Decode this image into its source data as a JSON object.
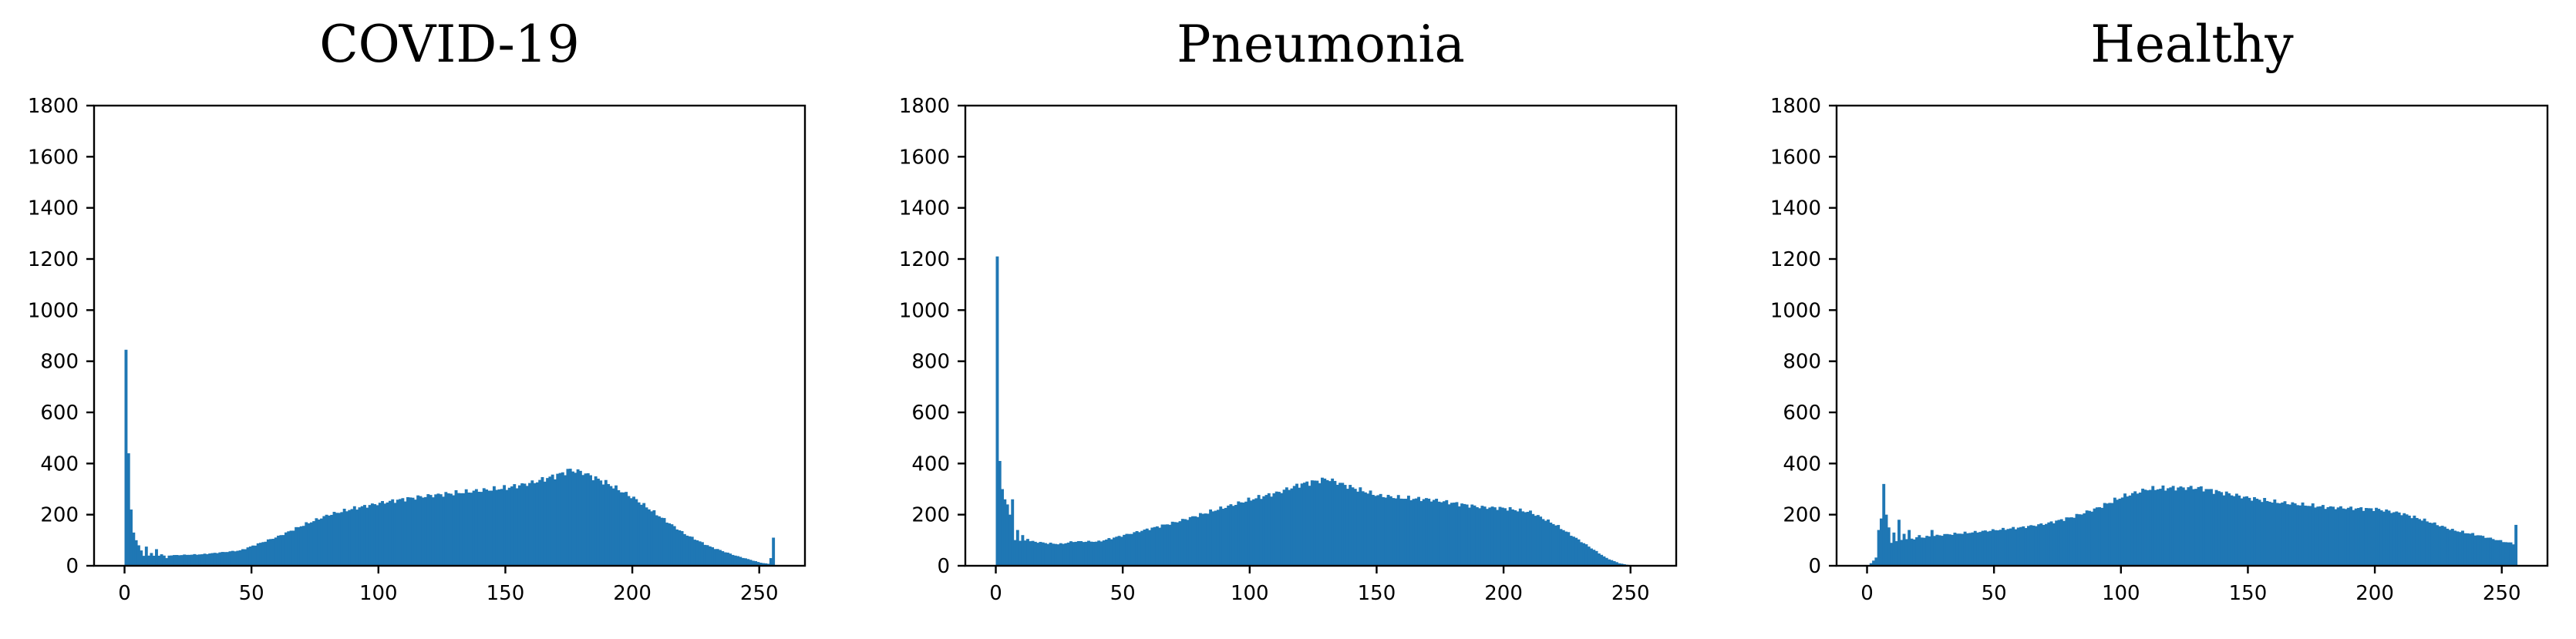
{
  "chart_data": [
    {
      "type": "histogram",
      "title": "COVID-19",
      "xlim": [
        -12,
        268
      ],
      "ylim": [
        0,
        1800
      ],
      "xticks": [
        0,
        50,
        100,
        150,
        200,
        250
      ],
      "yticks": [
        0,
        200,
        400,
        600,
        800,
        1000,
        1200,
        1400,
        1600,
        1800
      ],
      "bar_color": "#1f77b4",
      "grid": false,
      "envelope": [
        [
          0,
          40
        ],
        [
          15,
          40
        ],
        [
          30,
          45
        ],
        [
          45,
          60
        ],
        [
          60,
          115
        ],
        [
          70,
          160
        ],
        [
          80,
          200
        ],
        [
          90,
          225
        ],
        [
          100,
          245
        ],
        [
          110,
          262
        ],
        [
          120,
          275
        ],
        [
          130,
          285
        ],
        [
          140,
          295
        ],
        [
          150,
          305
        ],
        [
          160,
          325
        ],
        [
          170,
          355
        ],
        [
          175,
          375
        ],
        [
          180,
          365
        ],
        [
          190,
          320
        ],
        [
          200,
          265
        ],
        [
          210,
          195
        ],
        [
          220,
          125
        ],
        [
          230,
          75
        ],
        [
          240,
          40
        ],
        [
          250,
          12
        ],
        [
          255,
          5
        ]
      ],
      "spikes": [
        [
          0,
          845
        ],
        [
          1,
          440
        ],
        [
          2,
          220
        ],
        [
          3,
          130
        ],
        [
          4,
          100
        ],
        [
          5,
          80
        ],
        [
          6,
          60
        ],
        [
          8,
          75
        ],
        [
          10,
          50
        ],
        [
          12,
          65
        ],
        [
          14,
          45
        ],
        [
          16,
          30
        ],
        [
          254,
          30
        ],
        [
          255,
          110
        ]
      ]
    },
    {
      "type": "histogram",
      "title": "Pneumonia",
      "xlim": [
        -12,
        268
      ],
      "ylim": [
        0,
        1800
      ],
      "xticks": [
        0,
        50,
        100,
        150,
        200,
        250
      ],
      "yticks": [
        0,
        200,
        400,
        600,
        800,
        1000,
        1200,
        1400,
        1600,
        1800
      ],
      "bar_color": "#1f77b4",
      "grid": false,
      "envelope": [
        [
          0,
          100
        ],
        [
          10,
          100
        ],
        [
          20,
          88
        ],
        [
          25,
          85
        ],
        [
          30,
          95
        ],
        [
          40,
          95
        ],
        [
          50,
          120
        ],
        [
          60,
          145
        ],
        [
          70,
          170
        ],
        [
          80,
          200
        ],
        [
          90,
          230
        ],
        [
          100,
          260
        ],
        [
          110,
          285
        ],
        [
          120,
          320
        ],
        [
          130,
          340
        ],
        [
          140,
          305
        ],
        [
          150,
          275
        ],
        [
          160,
          265
        ],
        [
          170,
          260
        ],
        [
          180,
          245
        ],
        [
          190,
          230
        ],
        [
          200,
          225
        ],
        [
          210,
          210
        ],
        [
          220,
          160
        ],
        [
          230,
          95
        ],
        [
          240,
          30
        ],
        [
          245,
          10
        ],
        [
          250,
          0
        ]
      ],
      "spikes": [
        [
          0,
          1210
        ],
        [
          1,
          410
        ],
        [
          2,
          300
        ],
        [
          3,
          260
        ],
        [
          4,
          240
        ],
        [
          5,
          200
        ],
        [
          6,
          260
        ],
        [
          8,
          140
        ],
        [
          10,
          120
        ],
        [
          12,
          105
        ]
      ]
    },
    {
      "type": "histogram",
      "title": "Healthy",
      "xlim": [
        -12,
        268
      ],
      "ylim": [
        0,
        1800
      ],
      "xticks": [
        0,
        50,
        100,
        150,
        200,
        250
      ],
      "yticks": [
        0,
        200,
        400,
        600,
        800,
        1000,
        1200,
        1400,
        1600,
        1800
      ],
      "bar_color": "#1f77b4",
      "grid": false,
      "envelope": [
        [
          0,
          0
        ],
        [
          2,
          20
        ],
        [
          5,
          60
        ],
        [
          10,
          95
        ],
        [
          20,
          110
        ],
        [
          30,
          122
        ],
        [
          40,
          130
        ],
        [
          50,
          140
        ],
        [
          60,
          150
        ],
        [
          70,
          165
        ],
        [
          80,
          190
        ],
        [
          90,
          225
        ],
        [
          100,
          270
        ],
        [
          110,
          300
        ],
        [
          120,
          305
        ],
        [
          130,
          305
        ],
        [
          140,
          285
        ],
        [
          150,
          265
        ],
        [
          160,
          250
        ],
        [
          170,
          240
        ],
        [
          180,
          230
        ],
        [
          190,
          225
        ],
        [
          200,
          222
        ],
        [
          210,
          205
        ],
        [
          220,
          175
        ],
        [
          230,
          140
        ],
        [
          240,
          120
        ],
        [
          250,
          95
        ],
        [
          255,
          85
        ]
      ],
      "spikes": [
        [
          4,
          140
        ],
        [
          5,
          185
        ],
        [
          6,
          320
        ],
        [
          7,
          200
        ],
        [
          8,
          150
        ],
        [
          10,
          130
        ],
        [
          12,
          180
        ],
        [
          14,
          125
        ],
        [
          16,
          140
        ],
        [
          20,
          120
        ],
        [
          25,
          140
        ],
        [
          255,
          160
        ]
      ]
    }
  ]
}
